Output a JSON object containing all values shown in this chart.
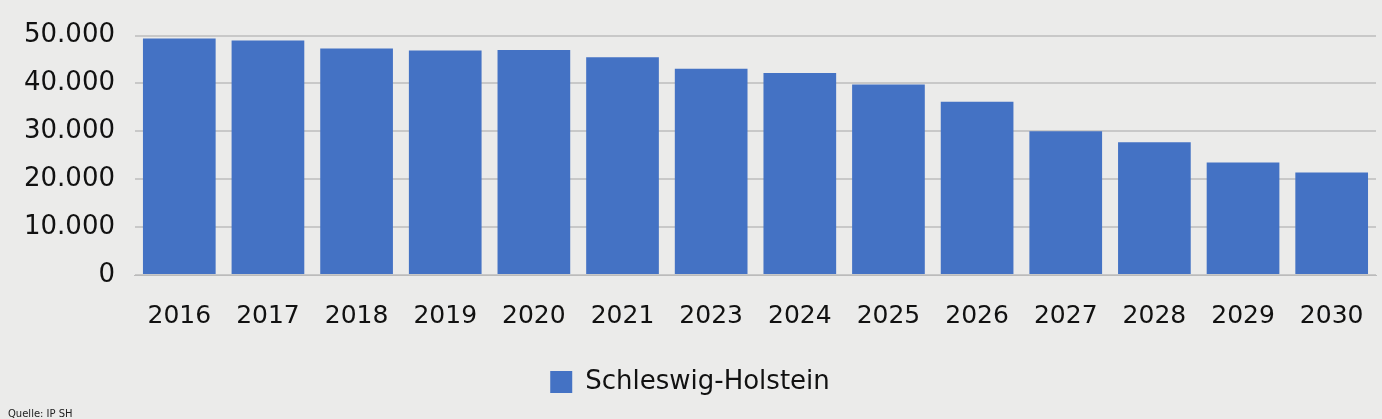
{
  "chart_data": {
    "type": "bar",
    "categories": [
      "2016",
      "2017",
      "2018",
      "2019",
      "2020",
      "2021",
      "2023",
      "2024",
      "2025",
      "2026",
      "2027",
      "2028",
      "2029",
      "2030"
    ],
    "series": [
      {
        "name": "Schleswig-Holstein",
        "color": "#4472c4",
        "values": [
          49400,
          49000,
          47300,
          46900,
          47000,
          45500,
          43100,
          42200,
          39800,
          36200,
          30000,
          27700,
          23500,
          21400
        ]
      }
    ],
    "ylim": [
      0,
      50000
    ],
    "yticks": [
      {
        "value": 0,
        "label": "0"
      },
      {
        "value": 10000,
        "label": "10.000"
      },
      {
        "value": 20000,
        "label": "20.000"
      },
      {
        "value": 30000,
        "label": "30.000"
      },
      {
        "value": 40000,
        "label": "40.000"
      },
      {
        "value": 50000,
        "label": "50.000"
      }
    ],
    "grid": "y",
    "legend": "bottom",
    "annotations": [
      "Quelle: IP SH"
    ]
  }
}
